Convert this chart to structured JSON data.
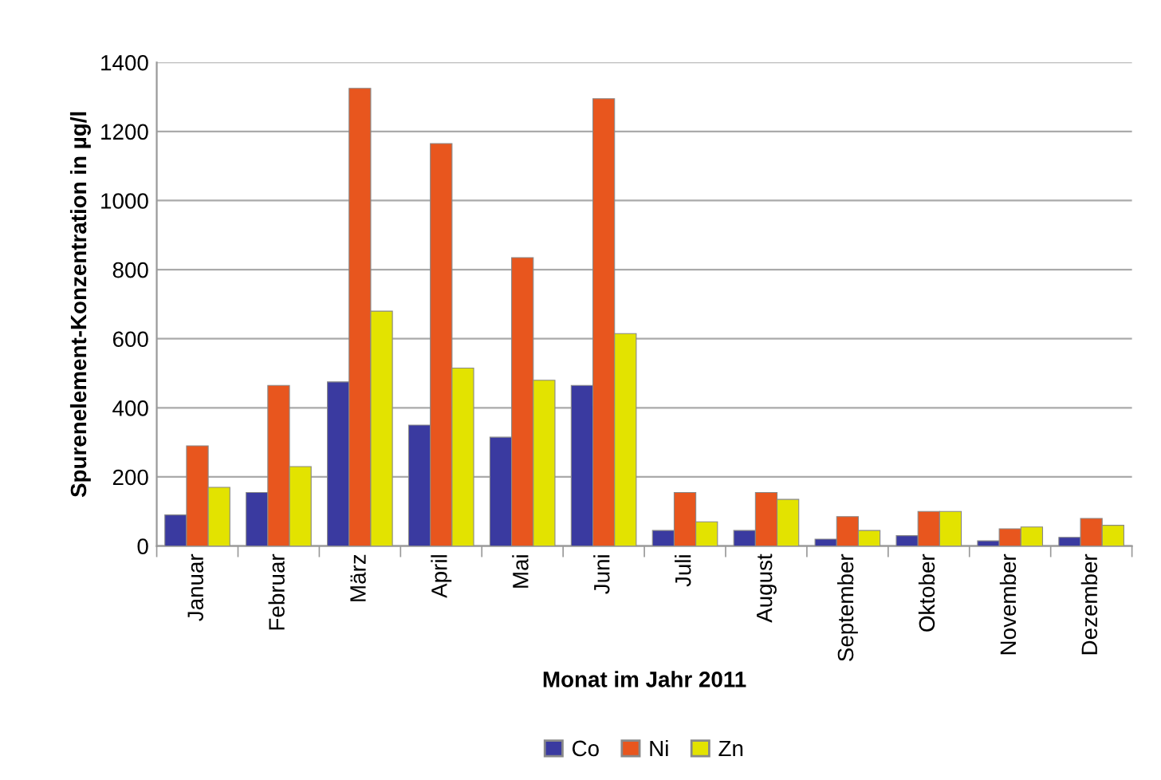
{
  "chart_data": {
    "type": "bar",
    "xlabel": "Monat im Jahr 2011",
    "ylabel": "Spurenelement-Konzentration in µg/l",
    "categories": [
      "Januar",
      "Februar",
      "März",
      "April",
      "Mai",
      "Juni",
      "Juli",
      "August",
      "September",
      "Oktober",
      "November",
      "Dezember"
    ],
    "series": [
      {
        "name": "Co",
        "color": "#3a3aa0",
        "values": [
          90,
          155,
          475,
          350,
          315,
          465,
          45,
          45,
          20,
          30,
          15,
          25
        ]
      },
      {
        "name": "Ni",
        "color": "#e8561e",
        "values": [
          290,
          465,
          1325,
          1165,
          835,
          1295,
          155,
          155,
          85,
          100,
          50,
          80
        ]
      },
      {
        "name": "Zn",
        "color": "#e3e300",
        "values": [
          170,
          230,
          680,
          515,
          480,
          615,
          70,
          135,
          45,
          100,
          55,
          60
        ]
      }
    ],
    "ylim": [
      0,
      1400
    ],
    "yticks": [
      0,
      200,
      400,
      600,
      800,
      1000,
      1200,
      1400
    ],
    "grid": "y",
    "legend": "bottom"
  }
}
